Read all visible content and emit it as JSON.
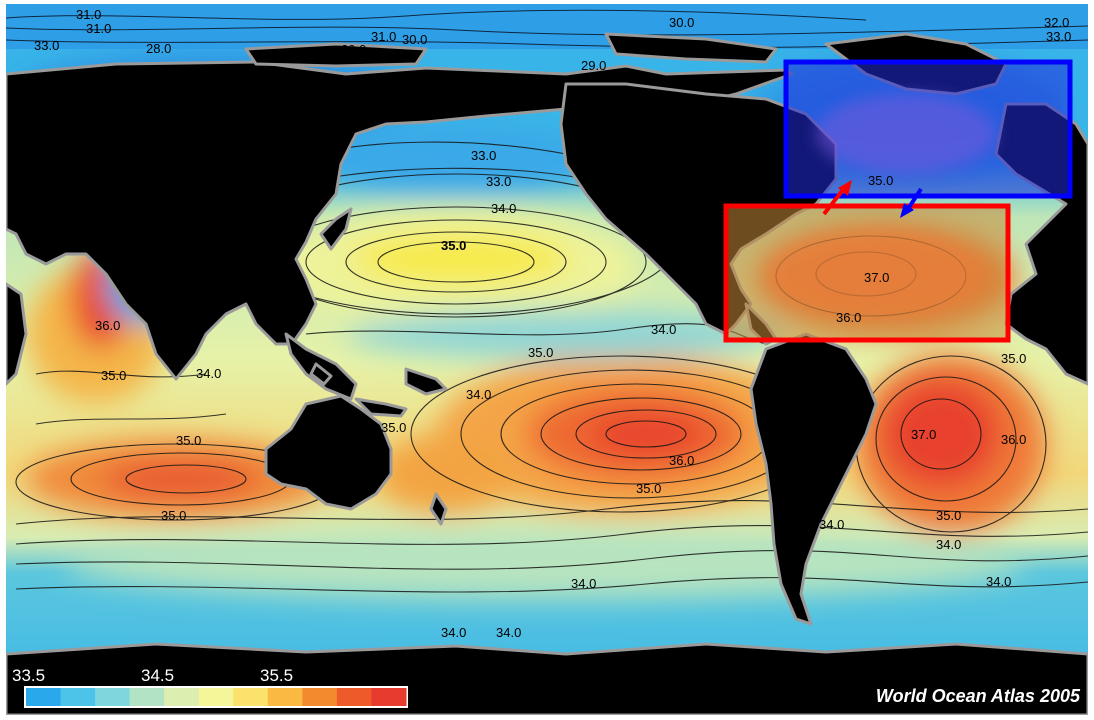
{
  "map": {
    "credit": "World Ocean Atlas 2005",
    "contour_labels": [
      {
        "id": "l1",
        "text": "31.0"
      },
      {
        "id": "l2",
        "text": "31.0"
      },
      {
        "id": "l3",
        "text": "33.0"
      },
      {
        "id": "l4",
        "text": "28.0"
      },
      {
        "id": "l5",
        "text": "29.0"
      },
      {
        "id": "l6",
        "text": "31.0"
      },
      {
        "id": "l7",
        "text": "30.0"
      },
      {
        "id": "l8",
        "text": "30.0"
      },
      {
        "id": "l9",
        "text": "29.0"
      },
      {
        "id": "l10",
        "text": "32.0"
      },
      {
        "id": "l11",
        "text": "33.0"
      },
      {
        "id": "l12",
        "text": "33.0"
      },
      {
        "id": "l13",
        "text": "33.0"
      },
      {
        "id": "l14",
        "text": "34.0"
      },
      {
        "id": "l15",
        "text": "35.0"
      },
      {
        "id": "l16",
        "text": "34.0"
      },
      {
        "id": "l17",
        "text": "34.0"
      },
      {
        "id": "l18",
        "text": "36.0"
      },
      {
        "id": "l19",
        "text": "35.0"
      },
      {
        "id": "l20",
        "text": "34.0"
      },
      {
        "id": "l21",
        "text": "35.0"
      },
      {
        "id": "l22",
        "text": "35.0"
      },
      {
        "id": "l23",
        "text": "35.0"
      },
      {
        "id": "l24",
        "text": "36.0"
      },
      {
        "id": "l25",
        "text": "35.0"
      },
      {
        "id": "l26",
        "text": "35.0"
      },
      {
        "id": "l27",
        "text": "37.0"
      },
      {
        "id": "l28",
        "text": "36.0"
      },
      {
        "id": "l29",
        "text": "35.0"
      },
      {
        "id": "l30",
        "text": "34.0"
      },
      {
        "id": "l31",
        "text": "34.0"
      },
      {
        "id": "l32",
        "text": "34.0"
      },
      {
        "id": "l33",
        "text": "34.0"
      },
      {
        "id": "l34",
        "text": "34.0"
      },
      {
        "id": "l35",
        "text": "34.0"
      },
      {
        "id": "l36",
        "text": "37.0"
      },
      {
        "id": "l37",
        "text": "35.0"
      },
      {
        "id": "l38",
        "text": "36.0"
      },
      {
        "id": "l39",
        "text": "35.0"
      }
    ],
    "colorbar": {
      "tick_labels": [
        "33.5",
        "34.5",
        "35.5"
      ],
      "colors": [
        "#29a9ec",
        "#4cc3e8",
        "#7fd6dc",
        "#b1e3c4",
        "#dcefb0",
        "#f5f59a",
        "#fbe26c",
        "#f9b943",
        "#f48a2e",
        "#ee5a2a",
        "#e63b2e"
      ]
    },
    "highlights": [
      {
        "name": "subpolar-north-atlantic",
        "color": "#0000ff"
      },
      {
        "name": "subtropical-north-atlantic",
        "color": "#ff0000"
      }
    ],
    "colors": {
      "land": "#000000",
      "coast": "#9a9a9a",
      "fresh": "#2aa8e8",
      "saline": "#e8402c"
    }
  }
}
